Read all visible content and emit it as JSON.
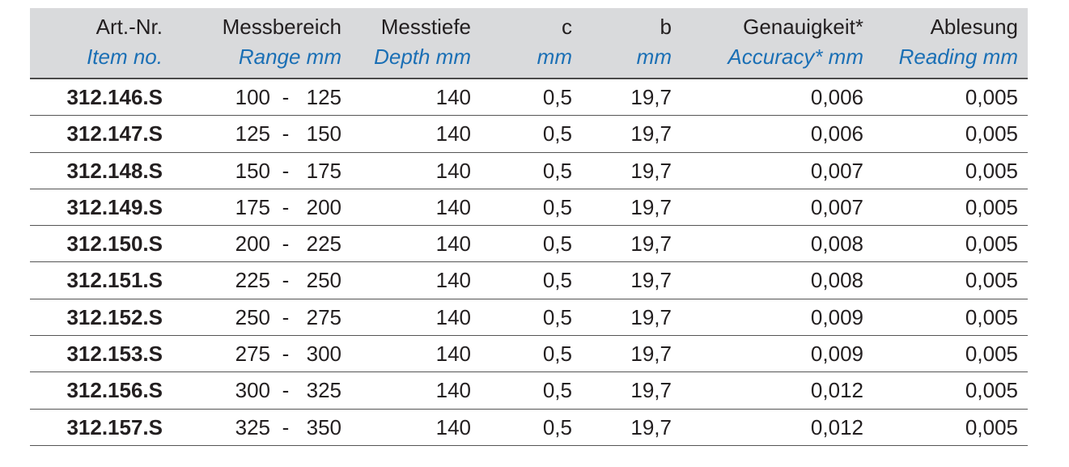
{
  "headers": [
    {
      "de": "Art.-Nr.",
      "en": "Item no."
    },
    {
      "de": "Messbereich",
      "en": "Range mm"
    },
    {
      "de": "Messtiefe",
      "en": "Depth mm"
    },
    {
      "de": "c",
      "en": "mm"
    },
    {
      "de": "b",
      "en": "mm"
    },
    {
      "de": "Genauigkeit*",
      "en": "Accuracy* mm"
    },
    {
      "de": "Ablesung",
      "en": "Reading mm"
    }
  ],
  "rows": [
    {
      "art": "312.146.S",
      "from": "100",
      "dash": "-",
      "to": "125",
      "depth": "140",
      "c": "0,5",
      "b": "19,7",
      "accuracy": "0,006",
      "reading": "0,005"
    },
    {
      "art": "312.147.S",
      "from": "125",
      "dash": "-",
      "to": "150",
      "depth": "140",
      "c": "0,5",
      "b": "19,7",
      "accuracy": "0,006",
      "reading": "0,005"
    },
    {
      "art": "312.148.S",
      "from": "150",
      "dash": "-",
      "to": "175",
      "depth": "140",
      "c": "0,5",
      "b": "19,7",
      "accuracy": "0,007",
      "reading": "0,005"
    },
    {
      "art": "312.149.S",
      "from": "175",
      "dash": "-",
      "to": "200",
      "depth": "140",
      "c": "0,5",
      "b": "19,7",
      "accuracy": "0,007",
      "reading": "0,005"
    },
    {
      "art": "312.150.S",
      "from": "200",
      "dash": "-",
      "to": "225",
      "depth": "140",
      "c": "0,5",
      "b": "19,7",
      "accuracy": "0,008",
      "reading": "0,005"
    },
    {
      "art": "312.151.S",
      "from": "225",
      "dash": "-",
      "to": "250",
      "depth": "140",
      "c": "0,5",
      "b": "19,7",
      "accuracy": "0,008",
      "reading": "0,005"
    },
    {
      "art": "312.152.S",
      "from": "250",
      "dash": "-",
      "to": "275",
      "depth": "140",
      "c": "0,5",
      "b": "19,7",
      "accuracy": "0,009",
      "reading": "0,005"
    },
    {
      "art": "312.153.S",
      "from": "275",
      "dash": "-",
      "to": "300",
      "depth": "140",
      "c": "0,5",
      "b": "19,7",
      "accuracy": "0,009",
      "reading": "0,005"
    },
    {
      "art": "312.156.S",
      "from": "300",
      "dash": "-",
      "to": "325",
      "depth": "140",
      "c": "0,5",
      "b": "19,7",
      "accuracy": "0,012",
      "reading": "0,005"
    },
    {
      "art": "312.157.S",
      "from": "325",
      "dash": "-",
      "to": "350",
      "depth": "140",
      "c": "0,5",
      "b": "19,7",
      "accuracy": "0,012",
      "reading": "0,005"
    }
  ],
  "colors": {
    "header_bg": "#d9dadc",
    "english_text": "#1a6fb5",
    "text": "#231f20",
    "rule": "#555555"
  }
}
